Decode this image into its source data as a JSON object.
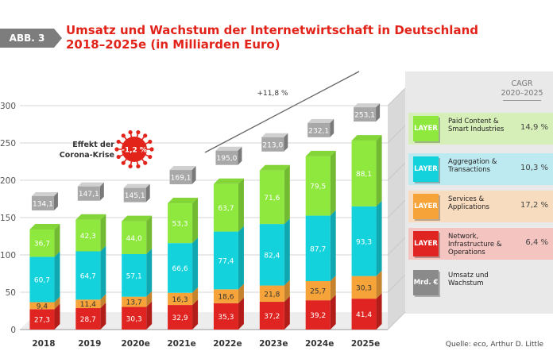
{
  "header": {
    "badge": "ABB. 3",
    "title_line1": "Umsatz und Wachstum der Internetwirtschaft in Deutschland",
    "title_line2": "2018–2025e (in Milliarden Euro)"
  },
  "annotations": {
    "growth_label": "+11,8 %",
    "corona_line1": "Effekt der",
    "corona_line2": "Corona-Krise",
    "corona_value": "-1,2 %"
  },
  "legend": {
    "cagr_line1": "CAGR",
    "cagr_line2": "2020–2025",
    "items": [
      {
        "icon": "LAYER",
        "label_lines": [
          "Paid Content &",
          "Smart Industries"
        ],
        "cagr": "14,9 %",
        "color": "#8ee83d",
        "bg": "#d6efb8"
      },
      {
        "icon": "LAYER",
        "label_lines": [
          "Aggregation &",
          "Transactions"
        ],
        "cagr": "10,3 %",
        "color": "#14d2dc",
        "bg": "#bdeaf0"
      },
      {
        "icon": "LAYER",
        "label_lines": [
          "Services &",
          "Applications"
        ],
        "cagr": "17,2 %",
        "color": "#f6a43a",
        "bg": "#f8dcbf"
      },
      {
        "icon": "LAYER",
        "label_lines": [
          "Network,",
          "Infrastructure &",
          "Operations"
        ],
        "cagr": "6,4 %",
        "color": "#df2421",
        "bg": "#f4c4c0"
      },
      {
        "icon": "Mrd. €",
        "label_lines": [
          "Umsatz und",
          "Wachstum"
        ],
        "cagr": "",
        "color": "#8a8a8a",
        "bg": "#e9e9e9"
      }
    ]
  },
  "source": "Quelle: eco, Arthur D. Little",
  "chart_data": {
    "type": "bar",
    "stacked": true,
    "categories": [
      "2018",
      "2019",
      "2020e",
      "2021e",
      "2022e",
      "2023e",
      "2024e",
      "2025e"
    ],
    "series": [
      {
        "name": "Network, Infrastructure & Operations",
        "color": "#df2421",
        "values": [
          27.3,
          28.7,
          30.3,
          32.9,
          35.3,
          37.2,
          39.2,
          41.4
        ],
        "labels": [
          "27,3",
          "28,7",
          "30,3",
          "32,9",
          "35,3",
          "37,2",
          "39,2",
          "41,4"
        ]
      },
      {
        "name": "Services & Applications",
        "color": "#f6a43a",
        "values": [
          9.4,
          11.4,
          13.7,
          16.3,
          18.6,
          21.8,
          25.7,
          30.3
        ],
        "labels": [
          "9,4",
          "11,4",
          "13,7",
          "16,3",
          "18,6",
          "21,8",
          "25,7",
          "30,3"
        ]
      },
      {
        "name": "Aggregation & Transactions",
        "color": "#14d2dc",
        "values": [
          60.7,
          64.7,
          57.1,
          66.6,
          77.4,
          82.4,
          87.7,
          93.3
        ],
        "labels": [
          "60,7",
          "64,7",
          "57,1",
          "66,6",
          "77,4",
          "82,4",
          "87,7",
          "93,3"
        ]
      },
      {
        "name": "Paid Content & Smart Industries",
        "color": "#8ee83d",
        "values": [
          36.7,
          42.3,
          44.0,
          53.3,
          63.7,
          71.6,
          79.5,
          88.1
        ],
        "labels": [
          "36,7",
          "42,3",
          "44,0",
          "53,3",
          "63,7",
          "71,6",
          "79,5",
          "88,1"
        ]
      }
    ],
    "totals": [
      134.1,
      147.1,
      145.1,
      169.1,
      195.0,
      213.0,
      232.1,
      253.1
    ],
    "total_labels": [
      "134,1",
      "147,1",
      "145,1",
      "169,1",
      "195,0",
      "213,0",
      "232,1",
      "253,1"
    ],
    "ylim": [
      0,
      300
    ],
    "yticks": [
      0,
      50,
      100,
      150,
      200,
      250,
      300
    ],
    "ytick_labels": [
      "0",
      "50",
      "100",
      "150",
      "200",
      "250",
      "300"
    ],
    "title": "Umsatz und Wachstum der Internetwirtschaft in Deutschland 2018–2025e (in Milliarden Euro)",
    "xlabel": "",
    "ylabel": ""
  }
}
